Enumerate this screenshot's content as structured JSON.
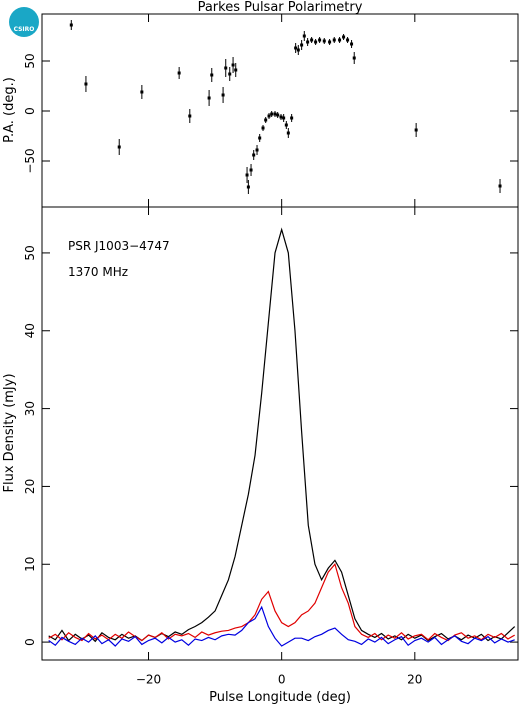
{
  "logo": "CSIRO",
  "chart_data": [
    {
      "type": "scatter",
      "title": "Parkes Pulsar Polarimetry",
      "ylabel": "P.A. (deg.)",
      "xlim": [
        -36,
        35.5
      ],
      "ylim": [
        -96,
        97
      ],
      "yticks": [
        {
          "value": -50,
          "label": "−50"
        },
        0,
        50
      ],
      "color": "#000000",
      "x": [
        -31.6,
        -29.4,
        -24.4,
        -21,
        -15.4,
        -13.8,
        -10.9,
        -10.5,
        -8.8,
        -8.4,
        -7.8,
        -7.3,
        -6.9,
        -5.2,
        -5,
        -4.6,
        -4.2,
        -3.7,
        -3.3,
        -2.8,
        -2.4,
        -1.9,
        -1.5,
        -1,
        -0.6,
        -0.1,
        0.3,
        0.7,
        1,
        1.5,
        2.1,
        2.5,
        3,
        3.4,
        3.9,
        4.5,
        5.1,
        5.7,
        6.4,
        7.2,
        7.9,
        8.7,
        9.3,
        9.9,
        10.5,
        10.9,
        20.2,
        32.8
      ],
      "values": [
        86,
        27,
        -36,
        19,
        38,
        -5,
        13,
        36,
        16,
        43,
        37,
        46,
        41,
        -64,
        -76,
        -59,
        -44,
        -39,
        -27,
        -17,
        -9,
        -5,
        -3,
        -3,
        -4,
        -6,
        -7,
        -14,
        -22,
        -7,
        63,
        61,
        66,
        75,
        69,
        71,
        69,
        71,
        70,
        69,
        71,
        71,
        74,
        71,
        67,
        53,
        -19,
        -75
      ],
      "errors": [
        5,
        8,
        8,
        7,
        6,
        7,
        8,
        7,
        8,
        9,
        7,
        8,
        7,
        8,
        7,
        6,
        5,
        5,
        4,
        3,
        3,
        3,
        3,
        3,
        3,
        3,
        4,
        4,
        5,
        4,
        5,
        5,
        5,
        5,
        4,
        3,
        3,
        3,
        3,
        3,
        3,
        3,
        3,
        3,
        4,
        6,
        7,
        7
      ]
    },
    {
      "type": "line",
      "xlabel": "Pulse Longitude (deg)",
      "ylabel": "Flux Density (mJy)",
      "annotations": [
        "PSR J1003−4747",
        "1370 MHz"
      ],
      "xlim": [
        -36,
        35.5
      ],
      "ylim": [
        -2.3,
        55.9
      ],
      "xticks": [
        {
          "value": -20,
          "label": "−20"
        },
        0,
        20
      ],
      "yticks": [
        0,
        10,
        20,
        30,
        40,
        50
      ],
      "x": [
        -35,
        -34,
        -33,
        -32,
        -31,
        -30,
        -29,
        -28,
        -27,
        -26,
        -25,
        -24,
        -23,
        -22,
        -21,
        -20,
        -19,
        -18,
        -17,
        -16,
        -15,
        -14,
        -13,
        -12,
        -11,
        -10,
        -9,
        -8,
        -7,
        -6,
        -5,
        -4,
        -3,
        -2,
        -1,
        0,
        1,
        2,
        3,
        4,
        5,
        6,
        7,
        8,
        9,
        10,
        11,
        12,
        13,
        14,
        15,
        16,
        17,
        18,
        19,
        20,
        21,
        22,
        23,
        24,
        25,
        26,
        27,
        28,
        29,
        30,
        31,
        32,
        33,
        34,
        35
      ],
      "series": [
        {
          "color": "#000000",
          "values": [
            0.8,
            0.3,
            1.5,
            0.2,
            1.0,
            0.4,
            0.9,
            0.1,
            1.2,
            0.6,
            0.3,
            1.0,
            0.5,
            0.8,
            0.2,
            0.9,
            0.6,
            1.1,
            0.7,
            1.3,
            1.0,
            1.6,
            2.0,
            2.5,
            3.2,
            4,
            6,
            8,
            11,
            15,
            19,
            24,
            32,
            41,
            50,
            53,
            50,
            40,
            27,
            15,
            10,
            8,
            9.5,
            10.5,
            9,
            6,
            3,
            1.5,
            1.0,
            0.6,
            1.1,
            0.4,
            0.8,
            0.3,
            1.0,
            0.5,
            0.9,
            0.2,
            0.7,
            1.1,
            0.4,
            0.8,
            0.3,
            0.9,
            0.5,
            1.0,
            0.2,
            0.7,
            0.4,
            1.2,
            2.0
          ]
        },
        {
          "color": "#e00000",
          "values": [
            0.5,
            1.0,
            0.3,
            1.2,
            0.6,
            0.2,
            1.1,
            0.4,
            0.9,
            0.3,
            1.0,
            0.5,
            1.3,
            0.7,
            0.2,
            0.9,
            0.6,
            1.2,
            0.4,
            1.0,
            0.8,
            1.1,
            0.6,
            1.3,
            0.9,
            1.2,
            1.4,
            1.5,
            1.8,
            2,
            2.5,
            3.5,
            5.5,
            6.5,
            4,
            2.5,
            2,
            2.5,
            3.5,
            4,
            5,
            7,
            9,
            10,
            7,
            5,
            2,
            1,
            0.6,
            1.1,
            0.3,
            0.9,
            0.5,
            1.2,
            0.4,
            0.8,
            1.0,
            0.3,
            1.1,
            0.6,
            0.2,
            0.9,
            1.2,
            0.5,
            0.8,
            0.3,
            1.0,
            0.6,
            1.1,
            0.4,
            0.9
          ]
        },
        {
          "color": "#0000e0",
          "values": [
            0.2,
            -0.4,
            0.6,
            0.1,
            -0.3,
            0.5,
            0.0,
            0.8,
            -0.2,
            0.3,
            -0.5,
            0.4,
            0.1,
            0.7,
            -0.3,
            0.2,
            0.5,
            -0.1,
            0.6,
            0.0,
            0.3,
            -0.4,
            0.4,
            0.2,
            0.6,
            0.3,
            0.8,
            1.0,
            0.9,
            1.5,
            2.5,
            3,
            4.5,
            2,
            0.5,
            -0.5,
            0,
            0.5,
            0.5,
            0.2,
            0.7,
            1,
            1.5,
            1.8,
            1,
            0.3,
            0.1,
            -0.3,
            0.4,
            0.0,
            0.6,
            -0.2,
            0.3,
            0.7,
            -0.4,
            0.2,
            0.5,
            0.0,
            0.6,
            -0.3,
            0.3,
            0.8,
            0.1,
            -0.2,
            0.5,
            0.2,
            0.7,
            -0.1,
            0.4,
            0.0,
            0.3
          ]
        }
      ]
    }
  ]
}
